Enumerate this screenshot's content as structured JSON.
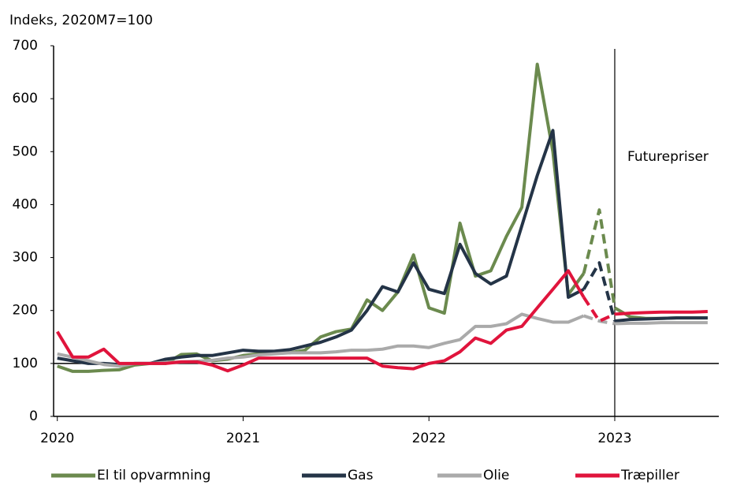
{
  "chart_data": {
    "type": "line",
    "y_axis_label": "Indeks, 2020M7=100",
    "x": [
      2020,
      2020.083,
      2020.167,
      2020.25,
      2020.333,
      2020.417,
      2020.5,
      2020.583,
      2020.667,
      2020.75,
      2020.833,
      2020.917,
      2021,
      2021.083,
      2021.167,
      2021.25,
      2021.333,
      2021.417,
      2021.5,
      2021.583,
      2021.667,
      2021.75,
      2021.833,
      2021.917,
      2022,
      2022.083,
      2022.167,
      2022.25,
      2022.333,
      2022.417,
      2022.5,
      2022.583,
      2022.667,
      2022.75,
      2022.833,
      2022.917,
      2023,
      2023.083,
      2023.167,
      2023.25,
      2023.333,
      2023.417,
      2023.5
    ],
    "series": [
      {
        "name": "El til opvarmning",
        "color": "#6b8a4e",
        "values": [
          95,
          85,
          85,
          87,
          88,
          97,
          100,
          100,
          117,
          118,
          105,
          108,
          115,
          118,
          120,
          120,
          125,
          150,
          160,
          165,
          220,
          200,
          235,
          305,
          205,
          195,
          365,
          265,
          275,
          340,
          395,
          665,
          500,
          230,
          270,
          390,
          205,
          188,
          185,
          185,
          186,
          186,
          186
        ]
      },
      {
        "name": "Gas",
        "color": "#243447",
        "values": [
          110,
          105,
          100,
          100,
          98,
          100,
          100,
          108,
          112,
          115,
          115,
          120,
          125,
          123,
          123,
          126,
          133,
          140,
          150,
          163,
          200,
          245,
          235,
          290,
          240,
          232,
          325,
          270,
          250,
          265,
          360,
          455,
          540,
          225,
          240,
          290,
          180,
          183,
          184,
          185,
          186,
          186,
          186
        ]
      },
      {
        "name": "Olie",
        "color": "#aaaaaa",
        "values": [
          118,
          112,
          105,
          98,
          95,
          100,
          100,
          102,
          103,
          104,
          106,
          110,
          112,
          116,
          118,
          120,
          120,
          120,
          122,
          125,
          125,
          127,
          133,
          133,
          130,
          138,
          145,
          170,
          170,
          175,
          193,
          185,
          178,
          178,
          190,
          180,
          175,
          176,
          176,
          177,
          177,
          177,
          177
        ]
      },
      {
        "name": "Træpiller",
        "color": "#e0143c",
        "values": [
          160,
          112,
          112,
          127,
          100,
          100,
          100,
          100,
          103,
          103,
          97,
          86,
          97,
          110,
          110,
          110,
          110,
          110,
          110,
          110,
          110,
          95,
          92,
          90,
          100,
          105,
          122,
          148,
          138,
          163,
          170,
          205,
          240,
          275,
          225,
          180,
          193,
          195,
          196,
          197,
          197,
          197,
          198
        ]
      }
    ],
    "dashed_xrange": [
      2022.833,
      2023
    ],
    "xlim": [
      2019.98,
      2023.56
    ],
    "xticks": [
      2020,
      2021,
      2022,
      2023
    ],
    "ylim": [
      0,
      700
    ],
    "yticks": [
      0,
      100,
      200,
      300,
      400,
      500,
      600,
      700
    ],
    "hline": 100,
    "vline": {
      "x": 2023,
      "label": "Futurepriser"
    },
    "legend": "bottom"
  }
}
